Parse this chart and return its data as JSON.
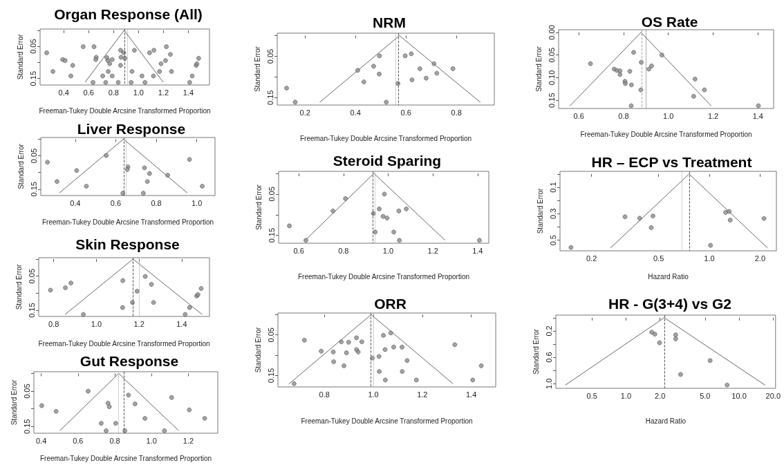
{
  "chart_data": [
    {
      "type": "scatter",
      "title": "Organ Response (All)",
      "xlabel": "Freeman-Tukey Double Arcsine Transformed Proportion",
      "ylabel": "Standard Error",
      "xlim": [
        0.21,
        1.57
      ],
      "ylim": [
        0.17,
        -0.004
      ],
      "xticks": [
        0.4,
        0.6,
        0.8,
        {
          "value": 1,
          "label": "1.0"
        },
        1.2,
        1.4
      ],
      "yticks": [
        {
          "value": 0,
          "label": null
        },
        0.05,
        {
          "value": 0.1,
          "label": null
        },
        0.15
      ],
      "series": [
        {
          "marker": "circle",
          "color": "#8c8c8c",
          "x": [
            0.263,
            0.313,
            0.391,
            0.411,
            0.472,
            0.457,
            0.556,
            0.643,
            0.661,
            0.657,
            0.635,
            0.713,
            0.746,
            0.754,
            0.769,
            0.757,
            0.737,
            0.789,
            0.789,
            0.837,
            0.856,
            0.881,
            0.859,
            0.891,
            0.856,
            0.941,
            0.948,
            0.967,
            1.028,
            1.052,
            1.089,
            1.124,
            1.12,
            1.169,
            1.181,
            1.217,
            1.224,
            1.256,
            1.265,
            1.411,
            1.431,
            1.463,
            1.469,
            1.483
          ],
          "values": [
            0.07,
            0.128,
            0.091,
            0.094,
            0.109,
            0.142,
            0.051,
            0.051,
            0.084,
            0.091,
            0.162,
            0.142,
            0.085,
            0.094,
            0.104,
            0.128,
            0.162,
            0.091,
            0.142,
            0.162,
            0.062,
            0.07,
            0.084,
            0.087,
            0.109,
            0.162,
            0.128,
            0.062,
            0.142,
            0.162,
            0.07,
            0.062,
            0.142,
            0.128,
            0.104,
            0.094,
            0.051,
            0.075,
            0.128,
            0.162,
            0.142,
            0.109,
            0.104,
            0.087
          ]
        },
        {
          "type": "line",
          "marker": "none",
          "color": "#555555",
          "x": [
            0.572,
            0.885,
            1.198
          ],
          "values": [
            0.161,
            0,
            0.161
          ]
        }
      ],
      "ref_lines": [
        {
          "axis": "x",
          "value": 0.885,
          "color": "#444444",
          "line_style": "dashed"
        },
        {
          "axis": "x",
          "value": 0.907,
          "color": "#999999",
          "line_style": "dotted"
        }
      ]
    },
    {
      "type": "scatter",
      "title": "Liver Response",
      "xlabel": "Freeman-Tukey Double Arcsine Transformed Proportion",
      "ylabel": "Standard Error",
      "xlim": [
        0.23,
        1.09
      ],
      "ylim": [
        0.169,
        -0.005
      ],
      "xticks": [
        0.4,
        0.6,
        0.8,
        {
          "value": 1,
          "label": "1.0"
        }
      ],
      "yticks": [
        {
          "value": 0,
          "label": null
        },
        0.05,
        {
          "value": 0.1,
          "label": null
        },
        0.15
      ],
      "series": [
        {
          "marker": "circle",
          "color": "#8c8c8c",
          "x": [
            0.263,
            0.31,
            0.407,
            0.455,
            0.553,
            0.635,
            0.66,
            0.657,
            0.742,
            0.767,
            0.756,
            0.736,
            0.856,
            0.964,
            1.027
          ],
          "values": [
            0.069,
            0.127,
            0.094,
            0.141,
            0.049,
            0.162,
            0.083,
            0.091,
            0.086,
            0.103,
            0.127,
            0.162,
            0.108,
            0.061,
            0.141
          ]
        },
        {
          "type": "line",
          "marker": "none",
          "color": "#555555",
          "x": [
            0.322,
            0.638,
            0.953
          ],
          "values": [
            0.161,
            0,
            0.161
          ]
        }
      ],
      "ref_lines": [
        {
          "axis": "x",
          "value": 0.638,
          "color": "#444444",
          "line_style": "dashed"
        },
        {
          "axis": "x",
          "value": 0.648,
          "color": "#999999",
          "line_style": "dotted"
        }
      ]
    },
    {
      "type": "scatter",
      "title": "Skin Response",
      "xlabel": "Freeman-Tukey Double Arcsine Transformed Proportion",
      "ylabel": "Standard Error",
      "xlim": [
        0.73,
        1.53
      ],
      "ylim": [
        0.168,
        -0.004
      ],
      "xticks": [
        0.8,
        {
          "value": 1,
          "label": "1.0"
        },
        1.2,
        1.4
      ],
      "yticks": [
        {
          "value": 0,
          "label": null
        },
        0.05,
        {
          "value": 0.1,
          "label": null
        },
        0.15
      ],
      "series": [
        {
          "marker": "circle",
          "color": "#8c8c8c",
          "x": [
            0.785,
            0.855,
            0.881,
            0.939,
            1.124,
            1.123,
            1.169,
            1.191,
            1.229,
            1.258,
            1.268,
            1.416,
            1.437,
            1.47,
            1.476,
            1.491
          ],
          "values": [
            0.091,
            0.084,
            0.07,
            0.162,
            0.063,
            0.142,
            0.127,
            0.094,
            0.051,
            0.074,
            0.127,
            0.162,
            0.142,
            0.108,
            0.104,
            0.086
          ]
        },
        {
          "type": "line",
          "marker": "none",
          "color": "#555555",
          "x": [
            0.854,
            1.172,
            1.495
          ],
          "values": [
            0.162,
            0,
            0.162
          ]
        }
      ],
      "ref_lines": [
        {
          "axis": "x",
          "value": 1.172,
          "color": "#444444",
          "line_style": "dashed"
        },
        {
          "axis": "x",
          "value": 1.202,
          "color": "#999999",
          "line_style": "dotted"
        }
      ]
    },
    {
      "type": "scatter",
      "title": "Gut Response",
      "xlabel": "Freeman-Tukey Double Arcsine Transformed Proportion",
      "ylabel": "Standard Error",
      "xlim": [
        0.36,
        1.36
      ],
      "ylim": [
        0.169,
        -0.005
      ],
      "xticks": [
        0.4,
        0.6,
        0.8,
        {
          "value": 1,
          "label": "1.0"
        },
        1.2
      ],
      "yticks": [
        {
          "value": 0,
          "label": null
        },
        0.05,
        {
          "value": 0.1,
          "label": null
        },
        0.15
      ],
      "series": [
        {
          "marker": "circle",
          "color": "#8c8c8c",
          "x": [
            0.403,
            0.481,
            0.655,
            0.726,
            0.753,
            0.763,
            0.77,
            0.805,
            0.855,
            0.874,
            0.91,
            0.964,
            1.07,
            1.109,
            1.205,
            1.289
          ],
          "values": [
            0.091,
            0.107,
            0.05,
            0.141,
            0.162,
            0.084,
            0.094,
            0.141,
            0.162,
            0.061,
            0.086,
            0.127,
            0.162,
            0.068,
            0.103,
            0.127
          ]
        },
        {
          "type": "line",
          "marker": "none",
          "color": "#555555",
          "x": [
            0.503,
            0.821,
            1.146
          ],
          "values": [
            0.161,
            0,
            0.161
          ]
        }
      ],
      "ref_lines": [
        {
          "axis": "x",
          "value": 0.821,
          "color": "#999999",
          "line_style": "dotted"
        },
        {
          "axis": "x",
          "value": 0.848,
          "color": "#444444",
          "line_style": "dashed"
        }
      ]
    },
    {
      "type": "scatter",
      "title": "NRM",
      "xlabel": "Freeman-Tukey Double Arcsine Transformed Proportion",
      "ylabel": "Standard Error",
      "xlim": [
        0.09,
        0.95
      ],
      "ylim": [
        0.168,
        -0.006
      ],
      "xticks": [
        0.2,
        0.4,
        0.6,
        0.8
      ],
      "yticks": [
        {
          "value": 0,
          "label": null
        },
        0.05,
        {
          "value": 0.1,
          "label": null
        },
        0.15
      ],
      "series": [
        {
          "marker": "circle",
          "color": "#8c8c8c",
          "x": [
            0.127,
            0.161,
            0.409,
            0.433,
            0.472,
            0.495,
            0.494,
            0.522,
            0.568,
            0.597,
            0.621,
            0.624,
            0.655,
            0.68,
            0.711,
            0.722,
            0.786
          ],
          "values": [
            0.127,
            0.161,
            0.084,
            0.112,
            0.074,
            0.049,
            0.093,
            0.161,
            0.116,
            0.049,
            0.044,
            0.107,
            0.08,
            0.103,
            0.068,
            0.091,
            0.08
          ]
        },
        {
          "type": "line",
          "marker": "none",
          "color": "#555555",
          "x": [
            0.259,
            0.574,
            0.894
          ],
          "values": [
            0.161,
            0,
            0.161
          ]
        }
      ],
      "ref_lines": [
        {
          "axis": "x",
          "value": 0.556,
          "color": "#999999",
          "line_style": "dotted"
        },
        {
          "axis": "x",
          "value": 0.574,
          "color": "#444444",
          "line_style": "dashed"
        }
      ]
    },
    {
      "type": "scatter",
      "title": "Steroid Sparing",
      "xlabel": "Freeman-Tukey Double Arcsine Transformed Proportion",
      "ylabel": "Standard Error",
      "xlim": [
        0.51,
        1.45
      ],
      "ylim": [
        0.169,
        -0.005
      ],
      "xticks": [
        0.6,
        0.8,
        {
          "value": 1,
          "label": "1.0"
        },
        1.2,
        1.4
      ],
      "yticks": [
        {
          "value": 0,
          "label": null
        },
        0.05,
        {
          "value": 0.1,
          "label": null
        },
        0.15
      ],
      "series": [
        {
          "marker": "circle",
          "color": "#8c8c8c",
          "x": [
            0.558,
            0.632,
            0.753,
            0.809,
            0.934,
            0.942,
            0.96,
            0.977,
            0.983,
            0.995,
            1.025,
            1.048,
            1.05,
            1.081,
            1.408
          ],
          "values": [
            0.127,
            0.162,
            0.091,
            0.061,
            0.097,
            0.142,
            0.086,
            0.104,
            0.05,
            0.108,
            0.142,
            0.091,
            0.162,
            0.086,
            0.162
          ]
        },
        {
          "type": "line",
          "marker": "none",
          "color": "#555555",
          "x": [
            0.631,
            0.936,
            1.253
          ],
          "values": [
            0.161,
            0,
            0.161
          ]
        }
      ],
      "ref_lines": [
        {
          "axis": "x",
          "value": 0.934,
          "color": "#444444",
          "line_style": "dashed"
        },
        {
          "axis": "x",
          "value": 0.942,
          "color": "#999999",
          "line_style": "dotted"
        }
      ]
    },
    {
      "type": "scatter",
      "title": "ORR",
      "xlabel": "Freeman-Tukey Double Arcsine Transformed Proportion",
      "ylabel": "Standard Error",
      "xlim": [
        0.61,
        1.5
      ],
      "ylim": [
        0.178,
        -0.004
      ],
      "xticks": [
        0.8,
        {
          "value": 1,
          "label": "1.0"
        },
        1.2,
        1.4
      ],
      "yticks": [
        {
          "value": 0,
          "label": null
        },
        0.05,
        {
          "value": 0.1,
          "label": null
        },
        0.15
      ],
      "series": [
        {
          "marker": "circle",
          "color": "#8c8c8c",
          "x": [
            0.676,
            0.718,
            0.787,
            0.836,
            0.838,
            0.869,
            0.88,
            0.89,
            0.899,
            0.931,
            0.931,
            0.938,
            0.953,
            0.996,
            1.023,
            1.024,
            1.041,
            1.048,
            1.049,
            1.071,
            1.083,
            1.117,
            1.118,
            1.138,
            1.176,
            1.333,
            1.406,
            1.441
          ],
          "values": [
            0.17,
            0.063,
            0.09,
            0.092,
            0.116,
            0.067,
            0.126,
            0.094,
            0.068,
            0.057,
            0.086,
            0.092,
            0.067,
            0.107,
            0.103,
            0.14,
            0.051,
            0.086,
            0.161,
            0.045,
            0.08,
            0.08,
            0.14,
            0.113,
            0.161,
            0.074,
            0.161,
            0.126
          ]
        },
        {
          "type": "line",
          "marker": "none",
          "color": "#555555",
          "x": [
            0.656,
            0.991,
            1.325
          ],
          "values": [
            0.17,
            0,
            0.17
          ]
        }
      ],
      "ref_lines": [
        {
          "axis": "x",
          "value": 0.989,
          "color": "#444444",
          "line_style": "dashed"
        },
        {
          "axis": "x",
          "value": 0.998,
          "color": "#999999",
          "line_style": "dotted"
        }
      ]
    },
    {
      "type": "scatter",
      "title": "OS Rate",
      "xlabel": "Freeman-Tukey Double Arcsine Transformed Proportion",
      "ylabel": "Standard Error",
      "xlim": [
        0.51,
        1.47
      ],
      "ylim": [
        0.168,
        -0.006
      ],
      "xticks": [
        0.6,
        0.8,
        {
          "value": 1,
          "label": "1.0"
        },
        1.2,
        1.4
      ],
      "yticks": [
        {
          "value": 0,
          "label": "0.00"
        },
        0.05,
        {
          "value": 0.1,
          "label": "0.10"
        },
        0.15
      ],
      "series": [
        {
          "marker": "circle",
          "color": "#8c8c8c",
          "x": [
            0.652,
            0.758,
            0.77,
            0.784,
            0.784,
            0.828,
            0.806,
            0.808,
            0.835,
            0.845,
            0.879,
            0.877,
            0.834,
            0.913,
            0.925,
            0.971,
            1.119,
            1.113,
            1.161,
            1.402
          ],
          "values": [
            0.069,
            0.081,
            0.084,
            0.085,
            0.093,
            0.086,
            0.108,
            0.113,
            0.116,
            0.044,
            0.066,
            0.127,
            0.162,
            0.081,
            0.074,
            0.05,
            0.103,
            0.141,
            0.127,
            0.162
          ]
        },
        {
          "type": "line",
          "marker": "none",
          "color": "#555555",
          "x": [
            0.561,
            0.878,
            1.191
          ],
          "values": [
            0.162,
            0,
            0.162
          ]
        }
      ],
      "ref_lines": [
        {
          "axis": "x",
          "value": 0.878,
          "color": "#999999",
          "line_style": "dashed"
        },
        {
          "axis": "x",
          "value": 0.897,
          "color": "#444444",
          "line_style": "dotted"
        }
      ]
    },
    {
      "type": "scatter",
      "title": "HR – ECP vs Treatment",
      "xlabel": "Hazard Ratio",
      "ylabel": "Standard Error",
      "log": "x",
      "xlim": [
        0.13,
        2.5
      ],
      "ylim": [
        0.58,
        -0.02
      ],
      "xticks": [
        0.2,
        0.5,
        {
          "value": 1,
          "label": "1.0"
        },
        {
          "value": 2,
          "label": "2.0"
        }
      ],
      "yticks": [
        {
          "value": 0,
          "label": null
        },
        0.1,
        {
          "value": 0.2,
          "label": null
        },
        0.3,
        {
          "value": 0.4,
          "label": null
        },
        0.5
      ],
      "series": [
        {
          "marker": "circle",
          "color": "#8c8c8c",
          "x": [
            0.151,
            0.316,
            0.386,
            0.463,
            0.452,
            1.016,
            1.25,
            1.31,
            1.33,
            2.11
          ],
          "values": [
            0.555,
            0.323,
            0.334,
            0.317,
            0.405,
            0.539,
            0.29,
            0.283,
            0.348,
            0.336
          ]
        },
        {
          "type": "line",
          "marker": "none",
          "color": "#555555",
          "x": [
            0.26,
            0.758,
            2.21
          ],
          "values": [
            0.557,
            0,
            0.557
          ]
        }
      ],
      "ref_lines": [
        {
          "axis": "x",
          "value": 0.694,
          "color": "#999999",
          "line_style": "dotted"
        },
        {
          "axis": "x",
          "value": 0.758,
          "color": "#444444",
          "line_style": "dashed"
        }
      ]
    },
    {
      "type": "scatter",
      "title": "HR - G(3+4) vs G2",
      "xlabel": "Hazard Ratio",
      "ylabel": "Standard Error",
      "log": "x",
      "xlim": [
        0.24,
        21
      ],
      "ylim": [
        1.07,
        -0.04
      ],
      "xticks": [
        0.5,
        {
          "value": 1,
          "label": "1.0"
        },
        {
          "value": 2,
          "label": "2.0"
        },
        {
          "value": 5,
          "label": "5.0"
        },
        {
          "value": 10,
          "label": "10.0"
        },
        {
          "value": 20,
          "label": "20.0"
        }
      ],
      "yticks": [
        {
          "value": 0,
          "label": null
        },
        0.2,
        {
          "value": 0.4,
          "label": null
        },
        0.6,
        {
          "value": 0.8,
          "label": null
        },
        {
          "value": 1,
          "label": "1.0"
        }
      ],
      "series": [
        {
          "marker": "circle",
          "color": "#8c8c8c",
          "x": [
            1.69,
            1.8,
            1.98,
            2.75,
            2.75,
            3.04,
            5.55,
            7.84
          ],
          "values": [
            0.22,
            0.25,
            0.38,
            0.26,
            0.32,
            0.86,
            0.65,
            1.02
          ]
        },
        {
          "type": "line",
          "marker": "none",
          "color": "#555555",
          "x": [
            0.292,
            2.18,
            16.9
          ],
          "values": [
            1.02,
            0,
            1.02
          ]
        }
      ],
      "ref_lines": [
        {
          "axis": "x",
          "value": 2.18,
          "color": "#444444",
          "line_style": "dashed"
        }
      ]
    }
  ]
}
